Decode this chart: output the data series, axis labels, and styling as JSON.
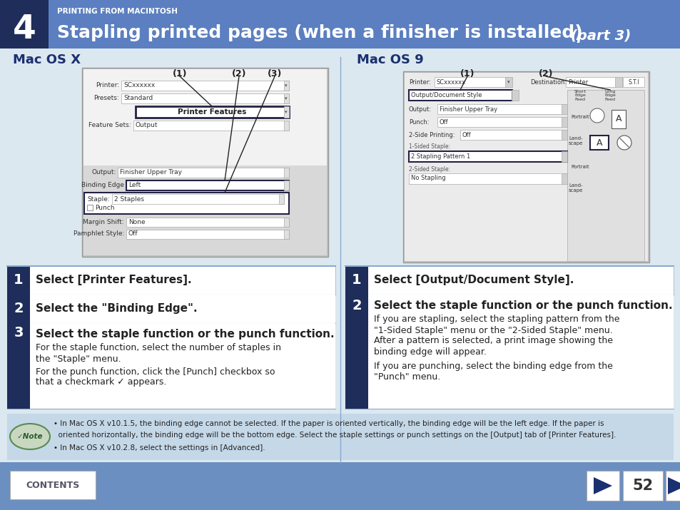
{
  "bg_color": "#dce8f0",
  "header_bg": "#5b7fc0",
  "header_dark": "#1e2d5a",
  "header_text": "PRINTING FROM MACINTOSH",
  "header_title": "Stapling printed pages (when a finisher is installed)",
  "header_part": "(part 3)",
  "mac_osx_title": "Mac OS X",
  "mac_os9_title": "Mac OS 9",
  "step1_text_left": "Select [Printer Features].",
  "step2_text_left": "Select the \"Binding Edge\".",
  "step3_text_left": "Select the staple function or the punch function.",
  "step1_text_right": "Select [Output/Document Style].",
  "step2_text_right": "Select the staple function or the punch function.",
  "note_text1a": "• In Mac OS X v10.1.5, the binding edge cannot be selected. If the paper is oriented vertically, the binding edge will be the left edge. If the paper is",
  "note_text1b": "  oriented horizontally, the binding edge will be the bottom edge. Select the staple settings or punch settings on the [Output] tab of [Printer Features].",
  "note_text2": "• In Mac OS X v10.2.8, select the settings in [Advanced].",
  "page_num": "52",
  "step_color": "#1e2d5a",
  "title_blue": "#1a3070",
  "note_bg": "#c5d8e8",
  "footer_bg": "#6b8fc0",
  "divider_color": "#8aaace",
  "screenshot_bg": "#e8e8e8",
  "screenshot_inner": "#d4d4d4",
  "white": "#ffffff",
  "text_dark": "#222222",
  "border_gray": "#aaaaaa",
  "border_blue": "#334488"
}
